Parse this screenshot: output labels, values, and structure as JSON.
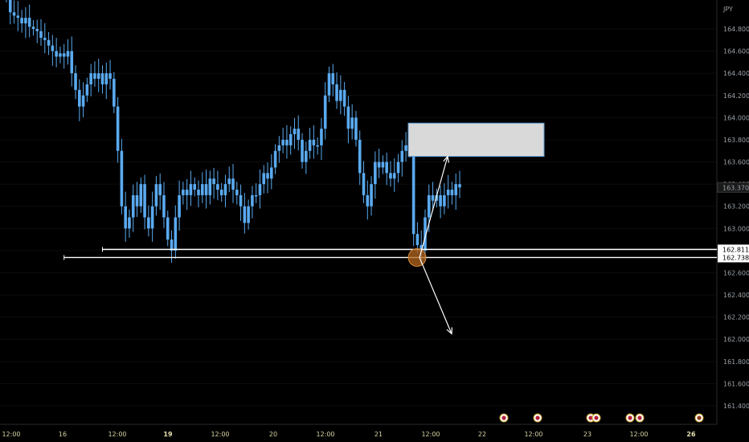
{
  "chart_data": {
    "type": "candlestick",
    "currency_label": "JPY",
    "y_ticks": [
      "164.800",
      "164.600",
      "164.400",
      "164.200",
      "164.000",
      "163.800",
      "163.600",
      "163.400",
      "163.200",
      "163.000",
      "162.800",
      "162.600",
      "162.400",
      "162.200",
      "162.000",
      "161.800",
      "161.600",
      "161.400"
    ],
    "ylim": [
      161.3,
      165.0
    ],
    "x_ticks": [
      {
        "label": "12:00",
        "bold": false
      },
      {
        "label": "16",
        "bold": false
      },
      {
        "label": "12:00",
        "bold": false
      },
      {
        "label": "19",
        "bold": true
      },
      {
        "label": "12:00",
        "bold": false
      },
      {
        "label": "20",
        "bold": false
      },
      {
        "label": "12:00",
        "bold": false
      },
      {
        "label": "21",
        "bold": false
      },
      {
        "label": "12:00",
        "bold": false
      },
      {
        "label": "22",
        "bold": false
      },
      {
        "label": "12:00",
        "bold": false
      },
      {
        "label": "23",
        "bold": false
      },
      {
        "label": "12:00",
        "bold": false
      },
      {
        "label": "26",
        "bold": true
      }
    ],
    "price_tags": [
      {
        "label": "163.370",
        "value": 163.37,
        "style": "current"
      },
      {
        "label": "162.811",
        "value": 162.811,
        "style": "level"
      },
      {
        "label": "162.738",
        "value": 162.738,
        "style": "level"
      }
    ],
    "closes": [
      165.1,
      164.95,
      164.92,
      164.9,
      164.85,
      164.9,
      164.82,
      164.8,
      164.78,
      164.72,
      164.7,
      164.65,
      164.6,
      164.55,
      164.58,
      164.55,
      164.6,
      164.4,
      164.25,
      164.1,
      164.2,
      164.3,
      164.4,
      164.35,
      164.4,
      164.3,
      164.4,
      164.35,
      164.1,
      163.7,
      163.2,
      163.0,
      163.1,
      163.3,
      163.2,
      163.4,
      163.1,
      163.0,
      163.2,
      163.4,
      163.3,
      163.1,
      162.9,
      162.8,
      163.1,
      163.3,
      163.35,
      163.3,
      163.4,
      163.35,
      163.3,
      163.4,
      163.3,
      163.45,
      163.4,
      163.35,
      163.3,
      163.4,
      163.45,
      163.35,
      163.3,
      163.2,
      163.05,
      163.2,
      163.3,
      163.3,
      163.4,
      163.5,
      163.45,
      163.55,
      163.7,
      163.75,
      163.8,
      163.75,
      163.85,
      163.9,
      163.8,
      163.6,
      163.7,
      163.8,
      163.75,
      163.75,
      163.9,
      164.2,
      164.4,
      164.3,
      164.15,
      164.25,
      164.1,
      163.9,
      164.0,
      163.8,
      163.5,
      163.3,
      163.2,
      163.4,
      163.6,
      163.55,
      163.6,
      163.5,
      163.45,
      163.5,
      163.6,
      163.7,
      163.75,
      163.7,
      162.95,
      162.85,
      162.8,
      163.1,
      163.3,
      163.25,
      163.3,
      163.2,
      163.3,
      163.35,
      163.3,
      163.4,
      163.37
    ],
    "zone": {
      "y_top": 163.95,
      "y_bottom": 163.65
    },
    "level_lines": [
      {
        "value": 162.811,
        "from_index": 25
      },
      {
        "value": 162.738,
        "from_index": 15
      }
    ],
    "projection": {
      "origin": 162.738,
      "up_target": 163.65,
      "down_target": 162.05
    },
    "event_icons": 9
  }
}
